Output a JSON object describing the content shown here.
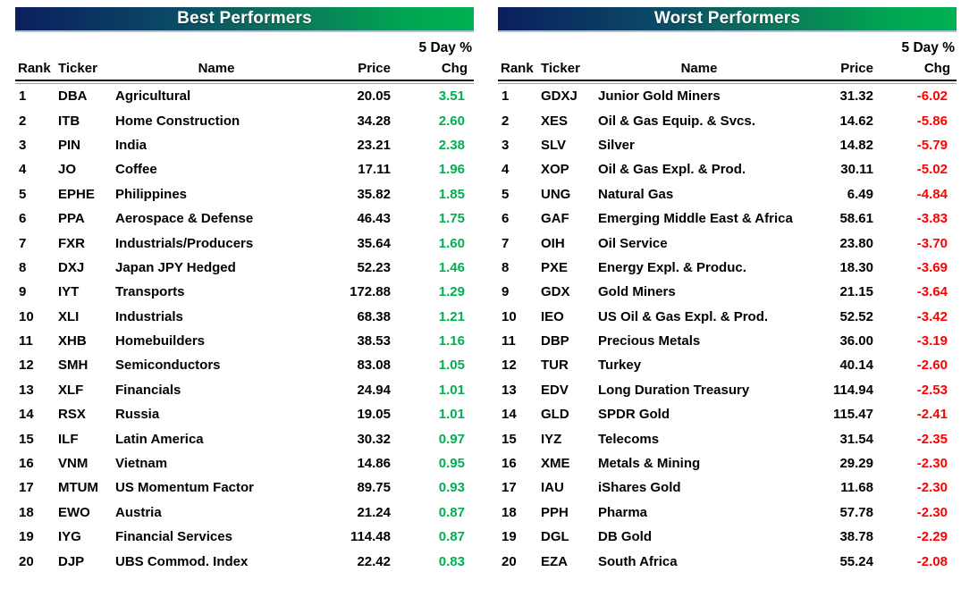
{
  "colors": {
    "positive_change": "#00B050",
    "negative_change": "#FF0000",
    "header_gradient_left": "#0A1F5E",
    "header_gradient_right": "#00B152",
    "header_text": "#FFFFFF"
  },
  "chart_data": [
    {
      "type": "table",
      "title": "Best Performers",
      "change_header_top": "5 Day %",
      "columns": [
        "Rank",
        "Ticker",
        "Name",
        "Price",
        "Chg"
      ],
      "rows": [
        [
          "1",
          "DBA",
          "Agricultural",
          "20.05",
          "3.51"
        ],
        [
          "2",
          "ITB",
          "Home Construction",
          "34.28",
          "2.60"
        ],
        [
          "3",
          "PIN",
          "India",
          "23.21",
          "2.38"
        ],
        [
          "4",
          "JO",
          "Coffee",
          "17.11",
          "1.96"
        ],
        [
          "5",
          "EPHE",
          "Philippines",
          "35.82",
          "1.85"
        ],
        [
          "6",
          "PPA",
          "Aerospace & Defense",
          "46.43",
          "1.75"
        ],
        [
          "7",
          "FXR",
          "Industrials/Producers",
          "35.64",
          "1.60"
        ],
        [
          "8",
          "DXJ",
          "Japan JPY Hedged",
          "52.23",
          "1.46"
        ],
        [
          "9",
          "IYT",
          "Transports",
          "172.88",
          "1.29"
        ],
        [
          "10",
          "XLI",
          "Industrials",
          "68.38",
          "1.21"
        ],
        [
          "11",
          "XHB",
          "Homebuilders",
          "38.53",
          "1.16"
        ],
        [
          "12",
          "SMH",
          "Semiconductors",
          "83.08",
          "1.05"
        ],
        [
          "13",
          "XLF",
          "Financials",
          "24.94",
          "1.01"
        ],
        [
          "14",
          "RSX",
          "Russia",
          "19.05",
          "1.01"
        ],
        [
          "15",
          "ILF",
          "Latin America",
          "30.32",
          "0.97"
        ],
        [
          "16",
          "VNM",
          "Vietnam",
          "14.86",
          "0.95"
        ],
        [
          "17",
          "MTUM",
          "US Momentum Factor",
          "89.75",
          "0.93"
        ],
        [
          "18",
          "EWO",
          "Austria",
          "21.24",
          "0.87"
        ],
        [
          "19",
          "IYG",
          "Financial Services",
          "114.48",
          "0.87"
        ],
        [
          "20",
          "DJP",
          "UBS Commod. Index",
          "22.42",
          "0.83"
        ]
      ]
    },
    {
      "type": "table",
      "title": "Worst Performers",
      "change_header_top": "5 Day %",
      "columns": [
        "Rank",
        "Ticker",
        "Name",
        "Price",
        "Chg"
      ],
      "rows": [
        [
          "1",
          "GDXJ",
          "Junior Gold Miners",
          "31.32",
          "-6.02"
        ],
        [
          "2",
          "XES",
          "Oil & Gas Equip. & Svcs.",
          "14.62",
          "-5.86"
        ],
        [
          "3",
          "SLV",
          "Silver",
          "14.82",
          "-5.79"
        ],
        [
          "4",
          "XOP",
          "Oil & Gas Expl. & Prod.",
          "30.11",
          "-5.02"
        ],
        [
          "5",
          "UNG",
          "Natural Gas",
          "6.49",
          "-4.84"
        ],
        [
          "6",
          "GAF",
          "Emerging Middle East & Africa",
          "58.61",
          "-3.83"
        ],
        [
          "7",
          "OIH",
          "Oil Service",
          "23.80",
          "-3.70"
        ],
        [
          "8",
          "PXE",
          "Energy Expl. & Produc.",
          "18.30",
          "-3.69"
        ],
        [
          "9",
          "GDX",
          "Gold Miners",
          "21.15",
          "-3.64"
        ],
        [
          "10",
          "IEO",
          "US Oil & Gas Expl. & Prod.",
          "52.52",
          "-3.42"
        ],
        [
          "11",
          "DBP",
          "Precious Metals",
          "36.00",
          "-3.19"
        ],
        [
          "12",
          "TUR",
          "Turkey",
          "40.14",
          "-2.60"
        ],
        [
          "13",
          "EDV",
          "Long Duration Treasury",
          "114.94",
          "-2.53"
        ],
        [
          "14",
          "GLD",
          "SPDR Gold",
          "115.47",
          "-2.41"
        ],
        [
          "15",
          "IYZ",
          "Telecoms",
          "31.54",
          "-2.35"
        ],
        [
          "16",
          "XME",
          "Metals & Mining",
          "29.29",
          "-2.30"
        ],
        [
          "17",
          "IAU",
          "iShares Gold",
          "11.68",
          "-2.30"
        ],
        [
          "18",
          "PPH",
          "Pharma",
          "57.78",
          "-2.30"
        ],
        [
          "19",
          "DGL",
          "DB Gold",
          "38.78",
          "-2.29"
        ],
        [
          "20",
          "EZA",
          "South Africa",
          "55.24",
          "-2.08"
        ]
      ]
    }
  ]
}
